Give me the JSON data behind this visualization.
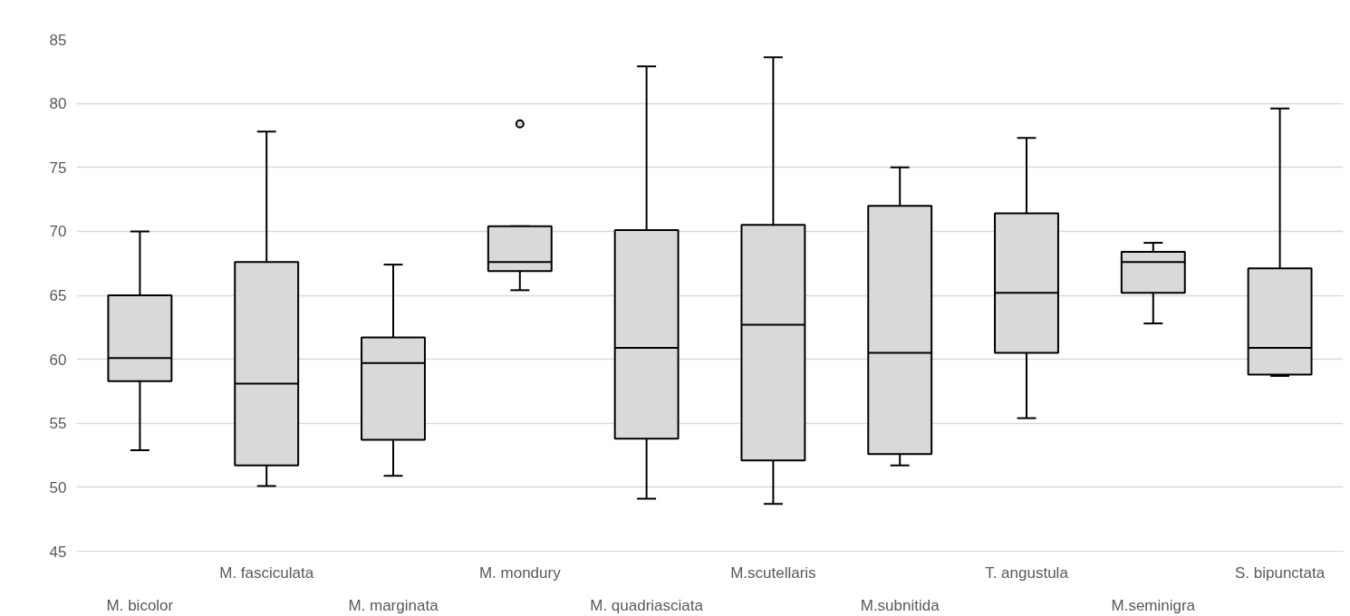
{
  "chart_data": {
    "type": "box",
    "categories": [
      "M. bicolor",
      "M. fasciculata",
      "M. marginata",
      "M. mondury",
      "M. quadriasciata",
      "M.scutellaris",
      "M.subnitida",
      "T. angustula",
      "M.seminigra",
      "S. bipunctata"
    ],
    "color": "#d9d9d9",
    "boxes": [
      {
        "low": 52.9,
        "q1": 58.3,
        "median": 60.1,
        "q3": 65.0,
        "high": 70.0
      },
      {
        "low": 50.1,
        "q1": 51.7,
        "median": 58.1,
        "q3": 67.6,
        "high": 77.8
      },
      {
        "low": 50.9,
        "q1": 53.7,
        "median": 59.7,
        "q3": 61.7,
        "high": 67.4
      },
      {
        "low": 65.4,
        "q1": 66.9,
        "median": 67.6,
        "q3": 70.4,
        "high": 70.4,
        "outliers": [
          78.4
        ]
      },
      {
        "low": 49.1,
        "q1": 53.8,
        "median": 60.9,
        "q3": 70.1,
        "high": 82.9
      },
      {
        "low": 48.7,
        "q1": 52.1,
        "median": 62.7,
        "q3": 70.5,
        "high": 83.6
      },
      {
        "low": 51.7,
        "q1": 52.6,
        "median": 60.5,
        "q3": 72.0,
        "high": 75.0
      },
      {
        "low": 55.4,
        "q1": 60.5,
        "median": 65.2,
        "q3": 71.4,
        "high": 77.3
      },
      {
        "low": 62.8,
        "q1": 65.2,
        "median": 67.6,
        "q3": 68.4,
        "high": 69.1
      },
      {
        "low": 58.7,
        "q1": 58.8,
        "median": 60.9,
        "q3": 67.1,
        "high": 79.6
      }
    ],
    "ylim": [
      45,
      85
    ],
    "yticks": [
      45,
      50,
      55,
      60,
      65,
      70,
      75,
      80,
      85
    ],
    "grid": "y"
  }
}
